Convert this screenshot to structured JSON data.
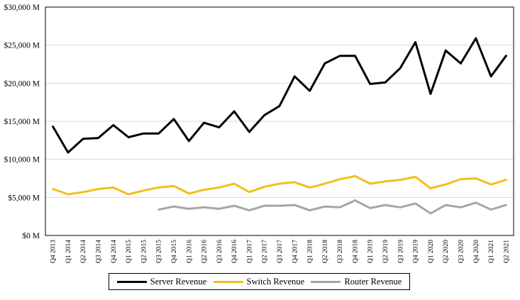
{
  "chart_data": {
    "type": "line",
    "categories": [
      "Q4 2013",
      "Q1 2014",
      "Q2 2014",
      "Q3 2014",
      "Q4 2014",
      "Q1 2015",
      "Q2 2015",
      "Q3 2015",
      "Q4 2015",
      "Q1 2016",
      "Q2 2016",
      "Q3 2016",
      "Q4 2016",
      "Q1 2017",
      "Q2 2017",
      "Q3 2017",
      "Q4 2017",
      "Q1 2018",
      "Q2 2018",
      "Q3 2018",
      "Q4 2018",
      "Q1 2019",
      "Q2 2019",
      "Q3 2019",
      "Q4 2019",
      "Q1 2020",
      "Q2 2020",
      "Q3 2020",
      "Q4 2020",
      "Q1 2021",
      "Q2 2021"
    ],
    "series": [
      {
        "name": "Server Revenue",
        "color": "#000000",
        "values": [
          14300,
          10900,
          12700,
          12800,
          14500,
          12900,
          13400,
          13400,
          15300,
          12400,
          14800,
          14200,
          16300,
          13600,
          15800,
          17000,
          20900,
          19000,
          22600,
          23600,
          23600,
          19900,
          20100,
          22000,
          25400,
          18600,
          24300,
          22600,
          25900,
          20900,
          23600
        ]
      },
      {
        "name": "Switch Revenue",
        "color": "#f2bf1a",
        "values": [
          6100,
          5400,
          5700,
          6100,
          6300,
          5400,
          5900,
          6300,
          6500,
          5500,
          6000,
          6300,
          6800,
          5700,
          6400,
          6800,
          7000,
          6300,
          6800,
          7400,
          7800,
          6800,
          7100,
          7300,
          7700,
          6200,
          6700,
          7400,
          7500,
          6700,
          7300
        ]
      },
      {
        "name": "Router Revenue",
        "color": "#a6a6a6",
        "values": [
          null,
          null,
          null,
          null,
          null,
          null,
          null,
          3400,
          3800,
          3500,
          3700,
          3500,
          3900,
          3300,
          3900,
          3900,
          4000,
          3300,
          3800,
          3700,
          4600,
          3600,
          4000,
          3700,
          4200,
          2900,
          4000,
          3700,
          4300,
          3400,
          4000
        ]
      }
    ],
    "yticks": [
      "$0 M",
      "$5,000 M",
      "$10,000 M",
      "$15,000 M",
      "$20,000 M",
      "$25,000 M",
      "$30,000 M"
    ],
    "ylim": [
      0,
      30000
    ],
    "grid": "horizontal",
    "legend_position": "bottom"
  }
}
